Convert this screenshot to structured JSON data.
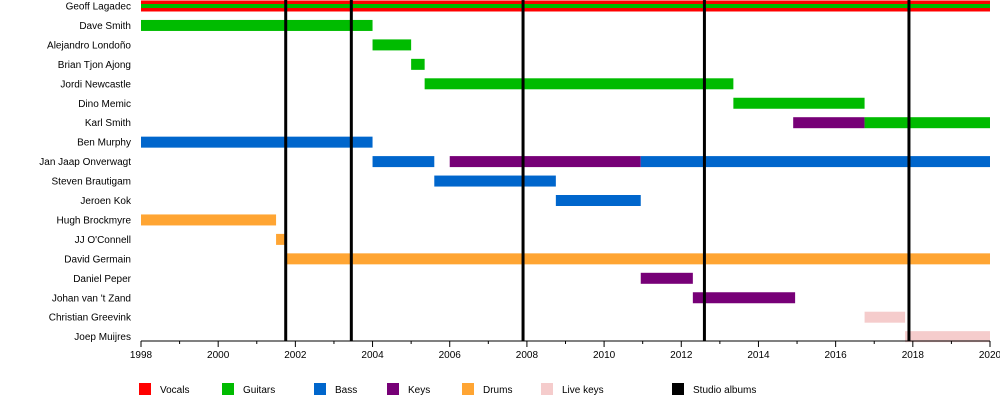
{
  "chart_data": {
    "type": "timeline",
    "x_range": [
      1998,
      2020
    ],
    "x_ticks": [
      "1998",
      "2000",
      "2002",
      "2004",
      "2006",
      "2008",
      "2010",
      "2012",
      "2014",
      "2016",
      "2018",
      "2020"
    ],
    "roles": [
      {
        "name": "Vocals",
        "color": "#ff0000"
      },
      {
        "name": "Guitars",
        "color": "#00bb00"
      },
      {
        "name": "Bass",
        "color": "#0066cc"
      },
      {
        "name": "Keys",
        "color": "#770077"
      },
      {
        "name": "Drums",
        "color": "#ffa533"
      },
      {
        "name": "Live keys",
        "color": "#f5cccc"
      },
      {
        "name": "Studio albums",
        "color": "#000000"
      }
    ],
    "members": [
      {
        "name": "Geoff Lagadec",
        "spans": [
          {
            "role": "Vocals",
            "start": 1998.0,
            "end": 2020.0
          },
          {
            "role": "Guitars",
            "start": 1998.0,
            "end": 2020.0
          }
        ]
      },
      {
        "name": "Dave Smith",
        "spans": [
          {
            "role": "Guitars",
            "start": 1998.0,
            "end": 2004.0
          }
        ]
      },
      {
        "name": "Alejandro Londoño",
        "spans": [
          {
            "role": "Guitars",
            "start": 2004.0,
            "end": 2005.0
          }
        ]
      },
      {
        "name": "Brian Tjon Ajong",
        "spans": [
          {
            "role": "Guitars",
            "start": 2005.0,
            "end": 2005.35
          }
        ]
      },
      {
        "name": "Jordi Newcastle",
        "spans": [
          {
            "role": "Guitars",
            "start": 2005.35,
            "end": 2013.35
          }
        ]
      },
      {
        "name": "Dino Memic",
        "spans": [
          {
            "role": "Guitars",
            "start": 2013.35,
            "end": 2016.75
          }
        ]
      },
      {
        "name": "Karl Smith",
        "spans": [
          {
            "role": "Keys",
            "start": 2014.9,
            "end": 2016.75
          },
          {
            "role": "Guitars",
            "start": 2016.75,
            "end": 2020.0
          }
        ]
      },
      {
        "name": "Ben Murphy",
        "spans": [
          {
            "role": "Bass",
            "start": 1998.0,
            "end": 2004.0
          }
        ]
      },
      {
        "name": "Jan Jaap Onverwagt",
        "spans": [
          {
            "role": "Bass",
            "start": 2004.0,
            "end": 2005.6
          },
          {
            "role": "Keys",
            "start": 2006.0,
            "end": 2010.95
          },
          {
            "role": "Bass",
            "start": 2010.95,
            "end": 2020.0
          }
        ]
      },
      {
        "name": "Steven Brautigam",
        "spans": [
          {
            "role": "Bass",
            "start": 2005.6,
            "end": 2008.75
          }
        ]
      },
      {
        "name": "Jeroen Kok",
        "spans": [
          {
            "role": "Bass",
            "start": 2008.75,
            "end": 2010.95
          }
        ]
      },
      {
        "name": "Hugh Brockmyre",
        "spans": [
          {
            "role": "Drums",
            "start": 1998.0,
            "end": 2001.5
          }
        ]
      },
      {
        "name": "JJ O'Connell",
        "spans": [
          {
            "role": "Drums",
            "start": 2001.5,
            "end": 2001.75
          }
        ]
      },
      {
        "name": "David Germain",
        "spans": [
          {
            "role": "Drums",
            "start": 2001.75,
            "end": 2020.0
          }
        ]
      },
      {
        "name": "Daniel Peper",
        "spans": [
          {
            "role": "Keys",
            "start": 2010.95,
            "end": 2012.3
          }
        ]
      },
      {
        "name": "Johan van 't Zand",
        "spans": [
          {
            "role": "Keys",
            "start": 2012.3,
            "end": 2014.95
          }
        ]
      },
      {
        "name": "Christian Greevink",
        "spans": [
          {
            "role": "Live keys",
            "start": 2016.75,
            "end": 2017.8
          }
        ]
      },
      {
        "name": "Joep Muijres",
        "spans": [
          {
            "role": "Live keys",
            "start": 2017.8,
            "end": 2020.0
          }
        ]
      }
    ],
    "studio_albums": [
      2001.75,
      2003.45,
      2007.9,
      2012.6,
      2017.9
    ],
    "legend_position": "bottom"
  }
}
